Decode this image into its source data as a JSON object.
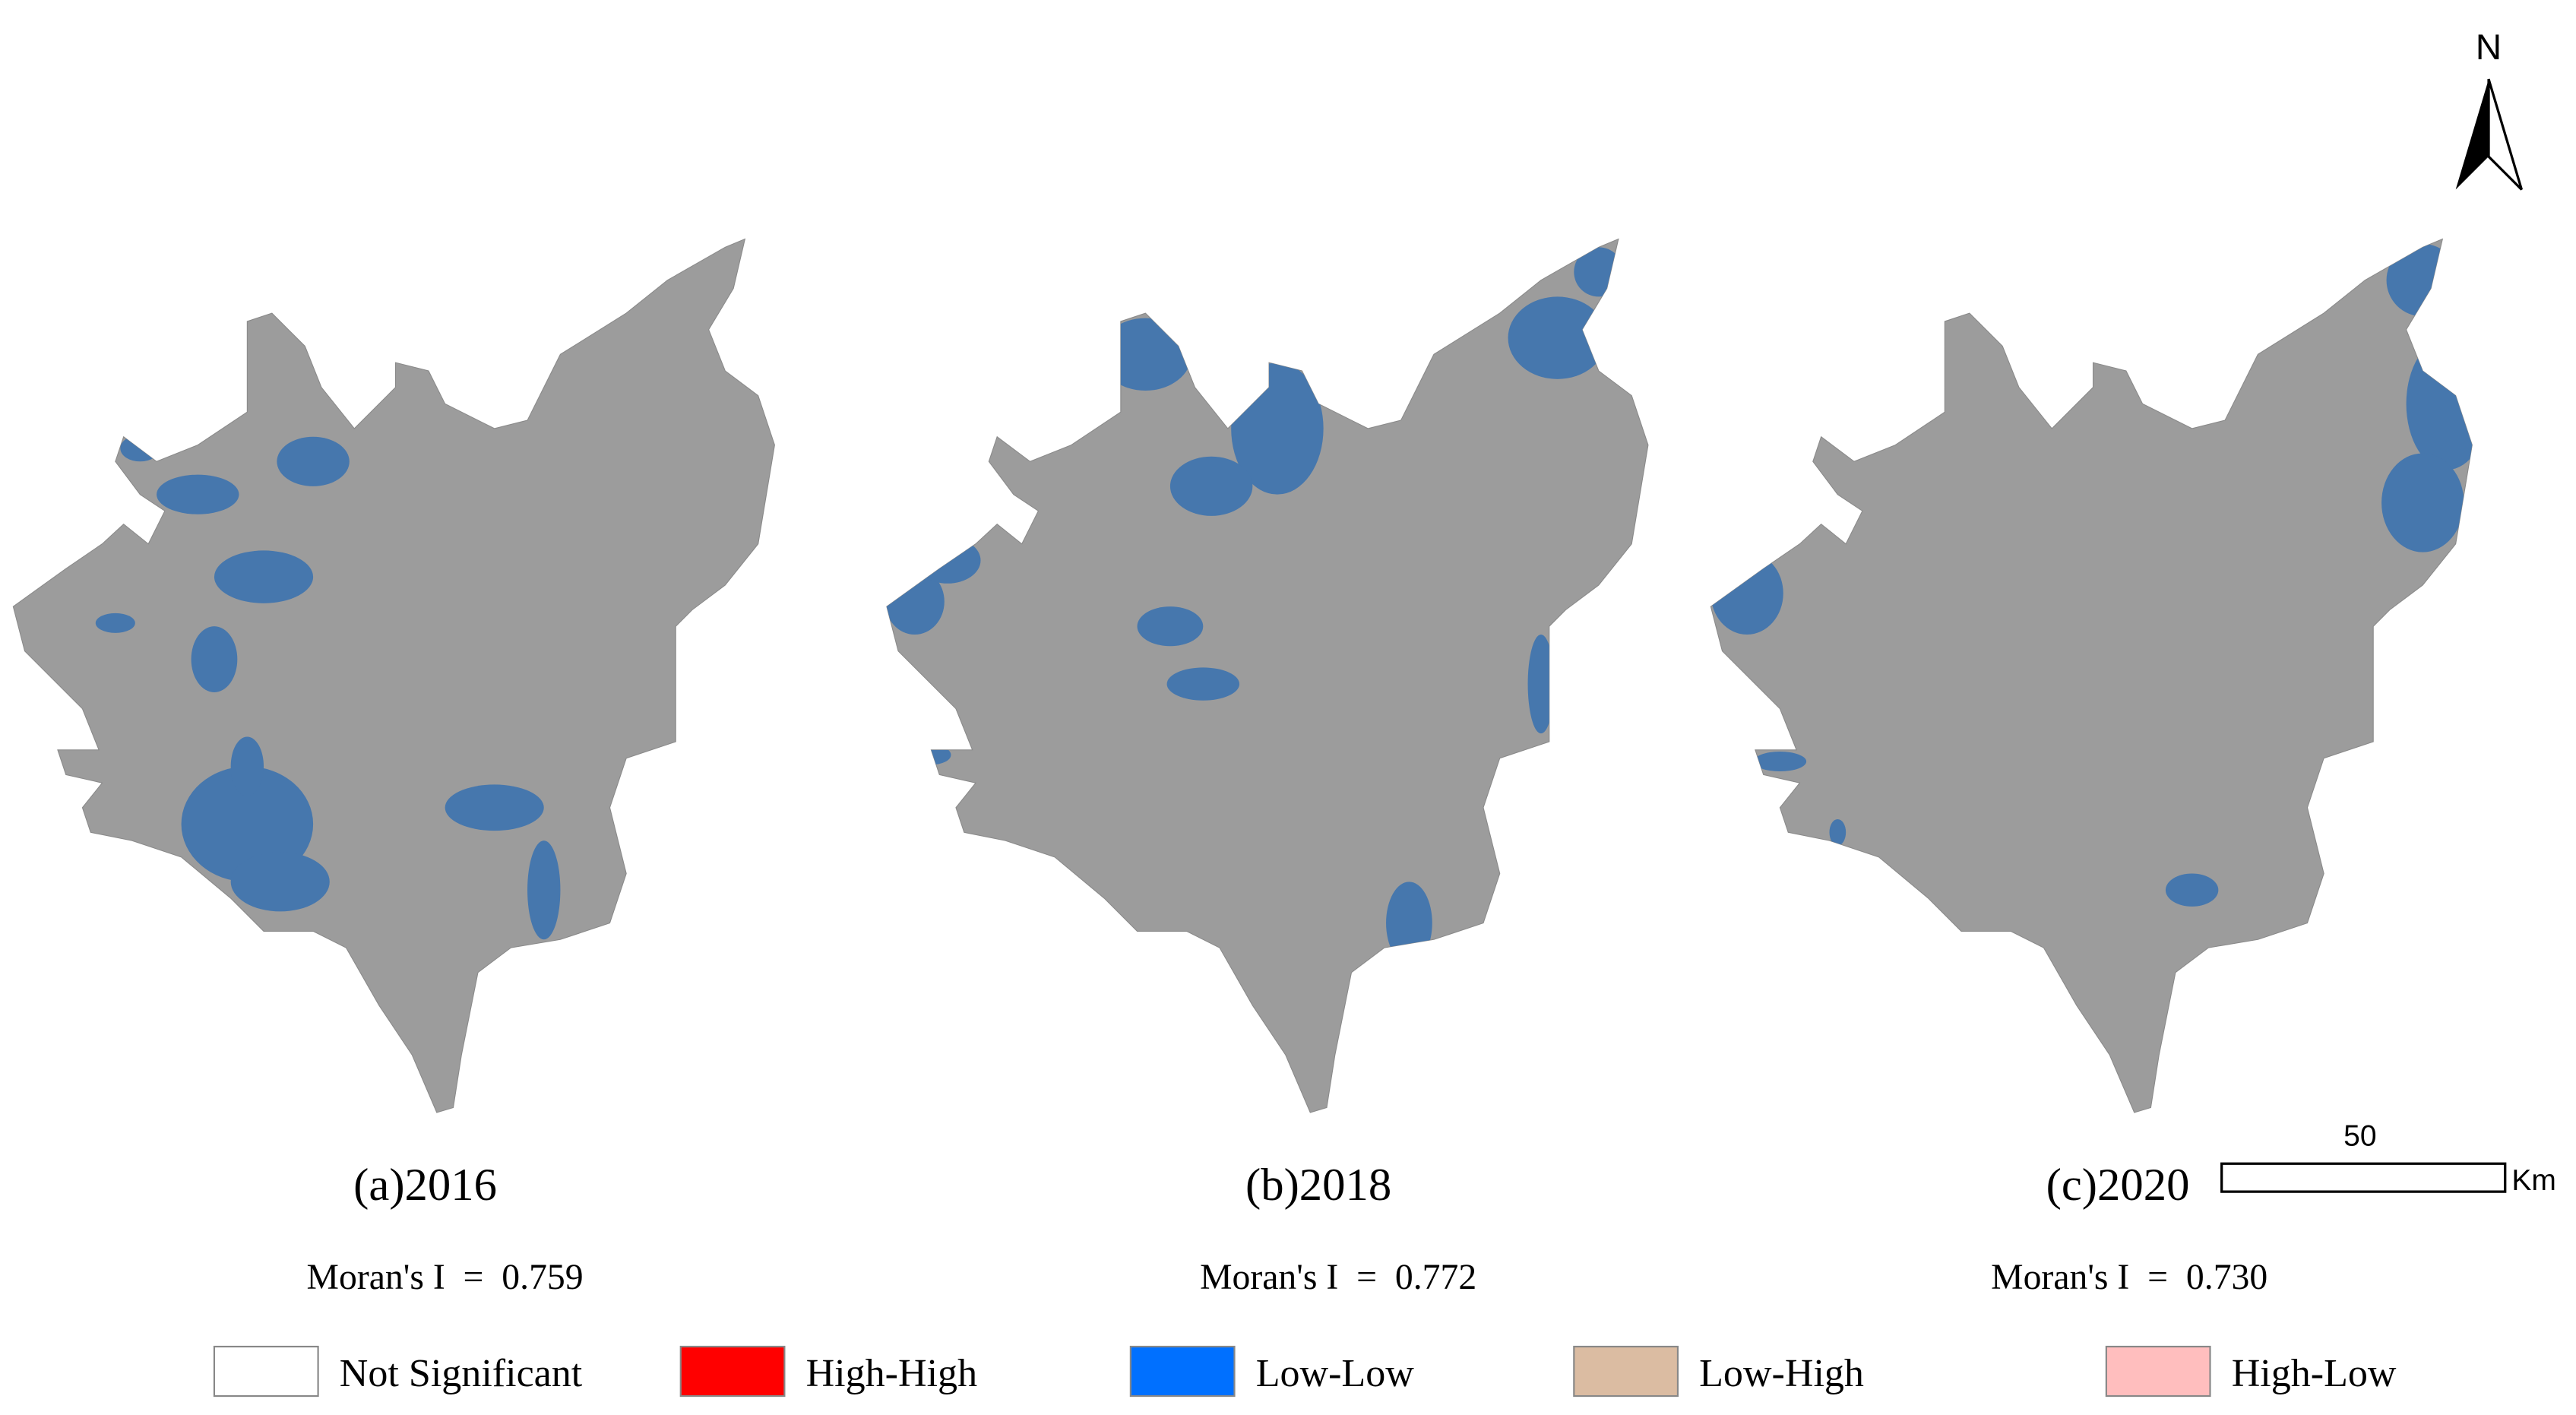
{
  "panels": [
    {
      "title": "(a)2016",
      "moran": "Moran's I  =  0.759"
    },
    {
      "title": "(b)2018",
      "moran": "Moran's I  =  0.772"
    },
    {
      "title": "(c)2020",
      "moran": "Moran's I  =  0.730"
    }
  ],
  "legend": [
    {
      "label": "Not Significant",
      "color": "#ffffff"
    },
    {
      "label": "High-High",
      "color": "#ff0000"
    },
    {
      "label": "Low-Low",
      "color": "#0070ff"
    },
    {
      "label": "Low-High",
      "color": "#dbbca2"
    },
    {
      "label": "High-Low",
      "color": "#ffbebe"
    }
  ],
  "north": "N",
  "scale_bar": {
    "label": "50",
    "unit": "Km"
  }
}
